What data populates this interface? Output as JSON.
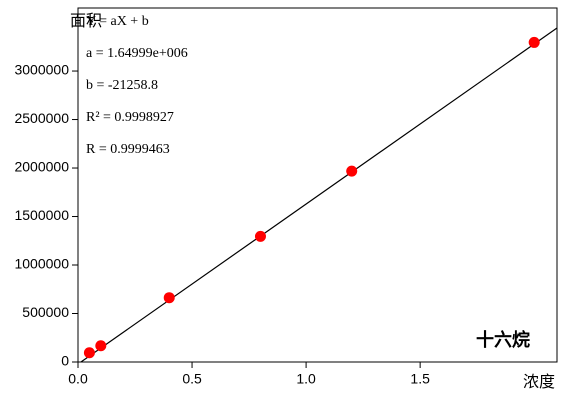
{
  "chart_data": {
    "type": "scatter",
    "title": "十六烷",
    "x_label": "浓度",
    "y_label": "面积",
    "annotations": [
      "Y = aX + b",
      "a = 1.64999e+006",
      "b = -21258.8",
      "R² = 0.9998927",
      "R = 0.9999463"
    ],
    "fit": {
      "a": 1649990,
      "b": -21258.8
    },
    "x": [
      0.05,
      0.1,
      0.4,
      0.8,
      1.2,
      2.0
    ],
    "series": [
      {
        "color": "#ff0000",
        "values": [
          95000,
          168000,
          663000,
          1295000,
          1968000,
          3295000
        ]
      }
    ],
    "line_color": "#000000",
    "xlim": [
      0,
      2.1
    ],
    "ylim": [
      0,
      3650000
    ],
    "xticks": [
      {
        "value": 0,
        "label": "0.0"
      },
      0.5,
      {
        "value": 1,
        "label": "1.0"
      },
      1.5
    ],
    "yticks": [
      0,
      500000,
      1000000,
      1500000,
      2000000,
      2500000,
      3000000
    ]
  }
}
